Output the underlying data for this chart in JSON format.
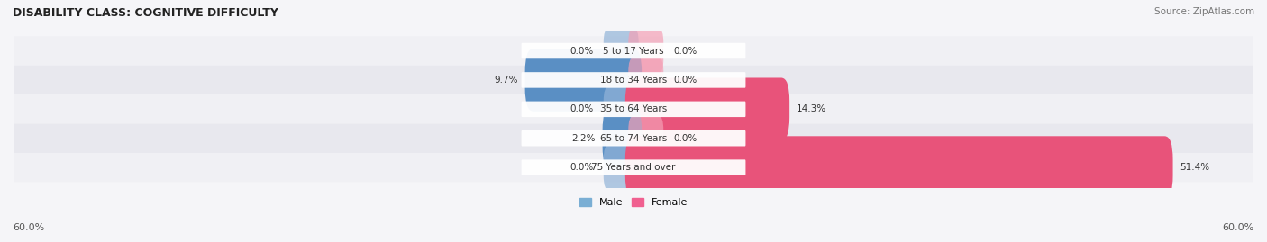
{
  "title": "DISABILITY CLASS: COGNITIVE DIFFICULTY",
  "source": "Source: ZipAtlas.com",
  "categories": [
    "5 to 17 Years",
    "18 to 34 Years",
    "35 to 64 Years",
    "65 to 74 Years",
    "75 Years and over"
  ],
  "male_values": [
    0.0,
    9.7,
    0.0,
    2.2,
    0.0
  ],
  "female_values": [
    0.0,
    0.0,
    14.3,
    0.0,
    51.4
  ],
  "max_val": 60.0,
  "male_color": "#92b4d8",
  "male_color_strong": "#5a8fc4",
  "female_color": "#f4a0b5",
  "female_color_strong": "#e8537a",
  "bar_bg_color": "#e8e8ec",
  "row_bg_colors": [
    "#f0f0f4",
    "#e8e8ee"
  ],
  "label_color": "#333333",
  "title_color": "#222222",
  "axis_label_color": "#555555",
  "legend_male_color": "#7aaed4",
  "legend_female_color": "#f06090"
}
